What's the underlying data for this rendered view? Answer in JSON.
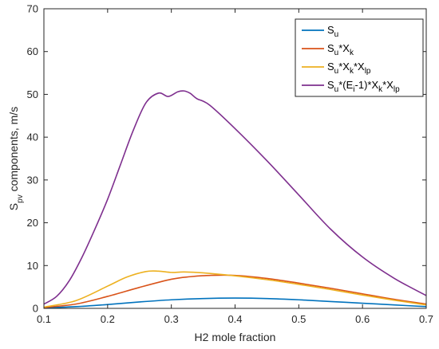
{
  "chart_data": {
    "type": "line",
    "xlabel": "H2 mole fraction",
    "ylabel": "S_pv components, m/s",
    "xlim": [
      0.1,
      0.7
    ],
    "ylim": [
      0,
      70
    ],
    "xticks": [
      0.1,
      0.2,
      0.3,
      0.4,
      0.5,
      0.6,
      0.7
    ],
    "yticks": [
      0,
      10,
      20,
      30,
      40,
      50,
      60,
      70
    ],
    "grid": false,
    "legend_position": "top-right",
    "series": [
      {
        "name": "S_u",
        "color": "#0072BD",
        "x": [
          0.1,
          0.15,
          0.2,
          0.25,
          0.3,
          0.35,
          0.4,
          0.45,
          0.5,
          0.55,
          0.6,
          0.65,
          0.7
        ],
        "y": [
          0.1,
          0.4,
          0.9,
          1.5,
          2.0,
          2.3,
          2.4,
          2.3,
          2.0,
          1.6,
          1.2,
          0.8,
          0.4
        ]
      },
      {
        "name": "S_u*X_k",
        "color": "#D95319",
        "x": [
          0.1,
          0.15,
          0.2,
          0.25,
          0.3,
          0.33,
          0.36,
          0.4,
          0.45,
          0.5,
          0.55,
          0.6,
          0.65,
          0.7
        ],
        "y": [
          0.2,
          1.0,
          2.8,
          4.9,
          6.8,
          7.4,
          7.7,
          7.7,
          7.0,
          5.9,
          4.7,
          3.4,
          2.1,
          1.0
        ]
      },
      {
        "name": "S_u*X_k*X_lp",
        "color": "#EDB120",
        "x": [
          0.1,
          0.15,
          0.2,
          0.23,
          0.26,
          0.28,
          0.3,
          0.32,
          0.35,
          0.4,
          0.45,
          0.5,
          0.55,
          0.6,
          0.65,
          0.7
        ],
        "y": [
          0.3,
          1.8,
          5.2,
          7.3,
          8.6,
          8.7,
          8.4,
          8.5,
          8.3,
          7.6,
          6.7,
          5.6,
          4.4,
          3.1,
          1.9,
          0.8
        ]
      },
      {
        "name": "S_u*(E_i-1)*X_k*X_lp",
        "color": "#7E2F8E",
        "x": [
          0.1,
          0.12,
          0.14,
          0.16,
          0.18,
          0.2,
          0.22,
          0.24,
          0.26,
          0.28,
          0.295,
          0.31,
          0.32,
          0.33,
          0.34,
          0.36,
          0.4,
          0.45,
          0.5,
          0.55,
          0.6,
          0.65,
          0.7
        ],
        "y": [
          1.0,
          2.8,
          6.5,
          12.0,
          18.5,
          25.5,
          33.5,
          41.5,
          48.0,
          50.3,
          49.5,
          50.6,
          50.8,
          50.2,
          49.0,
          47.5,
          42.0,
          34.5,
          26.5,
          18.5,
          12.0,
          7.0,
          3.0
        ]
      }
    ]
  },
  "legend": {
    "entries": [
      {
        "base": "S",
        "parts": [
          [
            "u",
            "sub"
          ]
        ]
      },
      {
        "base": "S",
        "parts": [
          [
            "u",
            "sub"
          ],
          [
            "*X",
            ""
          ],
          [
            "k",
            "sub"
          ]
        ]
      },
      {
        "base": "S",
        "parts": [
          [
            "u",
            "sub"
          ],
          [
            "*X",
            ""
          ],
          [
            "k",
            "sub"
          ],
          [
            "*X",
            ""
          ],
          [
            "lp",
            "sub"
          ]
        ]
      },
      {
        "base": "S",
        "parts": [
          [
            "u",
            "sub"
          ],
          [
            "*(E",
            ""
          ],
          [
            "i",
            "sub"
          ],
          [
            "-1)*X",
            ""
          ],
          [
            "k",
            "sub"
          ],
          [
            "*X",
            ""
          ],
          [
            "lp",
            "sub"
          ]
        ]
      }
    ]
  },
  "ylabel_parts": [
    [
      "S",
      ""
    ],
    [
      "pv",
      "sub"
    ],
    [
      " components, m/s",
      ""
    ]
  ]
}
